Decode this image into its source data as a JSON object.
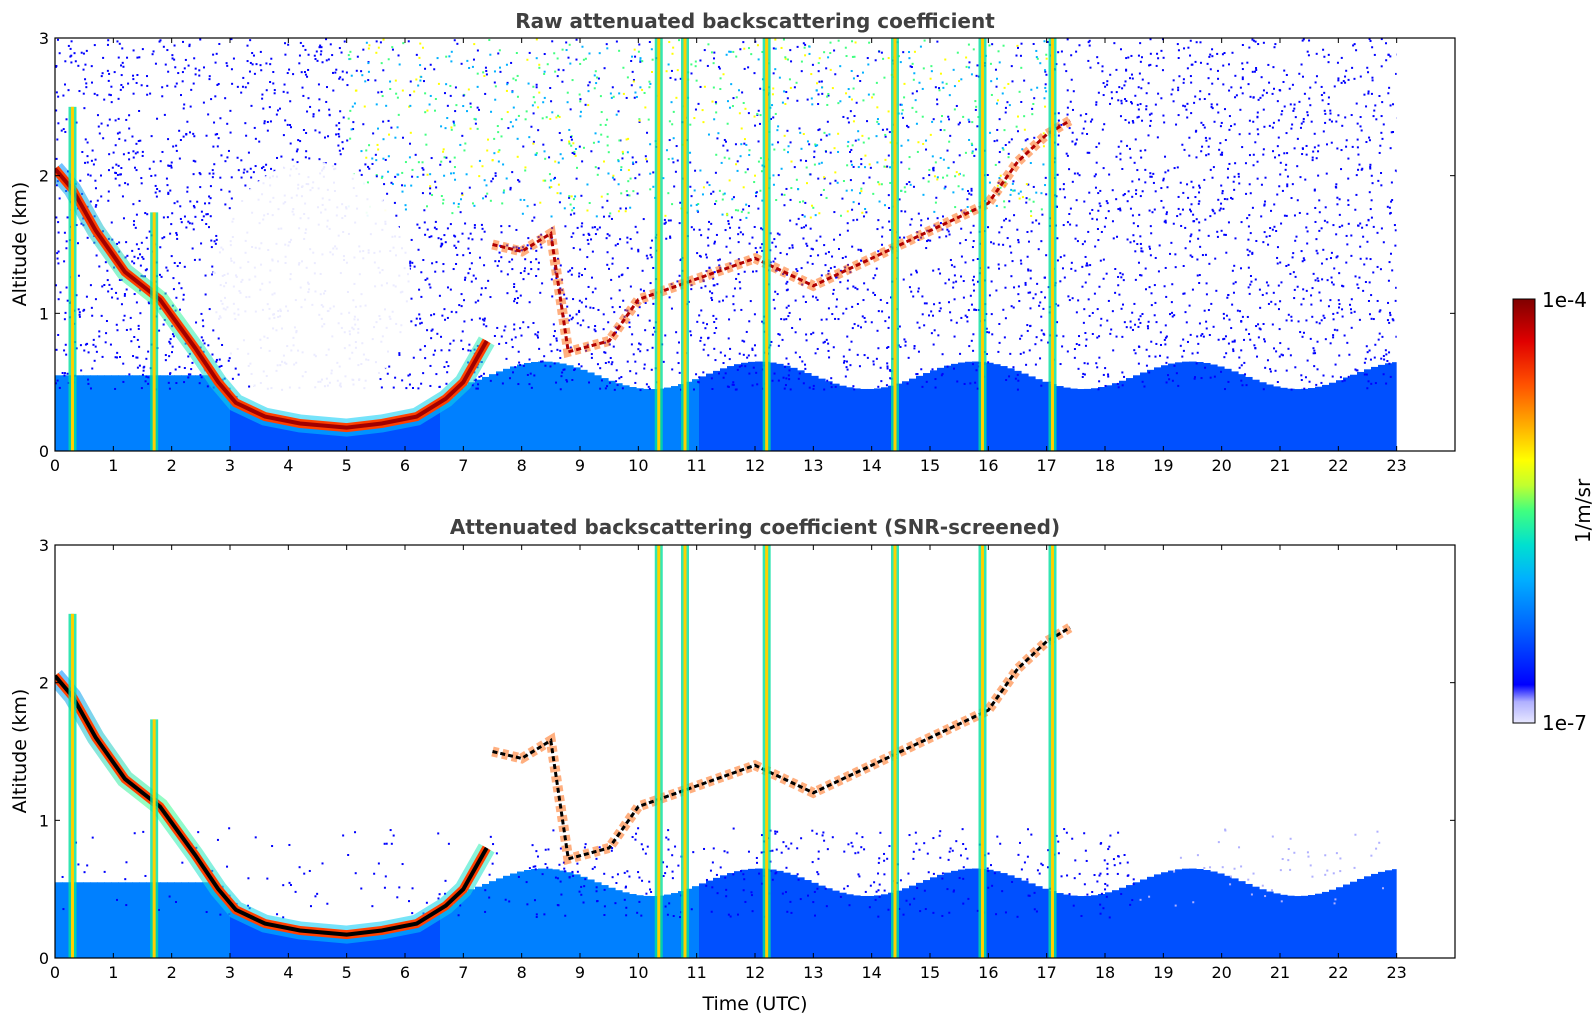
{
  "chart_data": [
    {
      "type": "heatmap",
      "title": "Raw attenuated backscattering coefficient",
      "ylabel": "Altitude (km)",
      "xlabel": "",
      "xlim": [
        0,
        24
      ],
      "ylim": [
        0,
        3
      ],
      "x_ticks": [
        "0",
        "1",
        "2",
        "3",
        "4",
        "5",
        "6",
        "7",
        "8",
        "9",
        "10",
        "11",
        "12",
        "13",
        "14",
        "15",
        "16",
        "17",
        "18",
        "19",
        "20",
        "21",
        "22",
        "23"
      ],
      "y_ticks": [
        "0",
        "1",
        "2",
        "3"
      ],
      "data_extent_x": [
        0,
        23
      ],
      "layers": {
        "boundary_layer_top_km": [
          [
            0,
            2.05
          ],
          [
            0.3,
            1.9
          ],
          [
            0.7,
            1.6
          ],
          [
            1.2,
            1.3
          ],
          [
            1.8,
            1.1
          ],
          [
            2.4,
            0.75
          ],
          [
            2.8,
            0.5
          ],
          [
            3.1,
            0.35
          ],
          [
            3.6,
            0.25
          ],
          [
            4.2,
            0.2
          ],
          [
            5.0,
            0.17
          ],
          [
            5.6,
            0.2
          ],
          [
            6.2,
            0.25
          ],
          [
            6.7,
            0.38
          ],
          [
            7.0,
            0.5
          ],
          [
            7.4,
            0.8
          ]
        ],
        "elevated_aerosol_km": [
          [
            7.5,
            1.5
          ],
          [
            8.0,
            1.45
          ],
          [
            8.5,
            1.58
          ],
          [
            8.8,
            0.72
          ],
          [
            9.5,
            0.8
          ],
          [
            10.0,
            1.1
          ],
          [
            12.0,
            1.4
          ],
          [
            12.5,
            1.3
          ],
          [
            13.0,
            1.2
          ],
          [
            13.5,
            1.3
          ],
          [
            14.0,
            1.4
          ],
          [
            14.5,
            1.5
          ],
          [
            15.0,
            1.6
          ],
          [
            15.5,
            1.7
          ],
          [
            16.0,
            1.8
          ],
          [
            16.5,
            2.1
          ],
          [
            17.0,
            2.3
          ],
          [
            17.4,
            2.4
          ]
        ],
        "precip_columns_hour": [
          0.3,
          1.7,
          10.35,
          10.8,
          12.2,
          14.4,
          15.9,
          17.1
        ]
      }
    },
    {
      "type": "heatmap",
      "title": "Attenuated backscattering coefficient (SNR-screened)",
      "ylabel": "Altitude (km)",
      "xlabel": "Time (UTC)",
      "xlim": [
        0,
        24
      ],
      "ylim": [
        0,
        3
      ],
      "x_ticks": [
        "0",
        "1",
        "2",
        "3",
        "4",
        "5",
        "6",
        "7",
        "8",
        "9",
        "10",
        "11",
        "12",
        "13",
        "14",
        "15",
        "16",
        "17",
        "18",
        "19",
        "20",
        "21",
        "22",
        "23"
      ],
      "y_ticks": [
        "0",
        "1",
        "2",
        "3"
      ],
      "data_extent_x": [
        0,
        23
      ]
    }
  ],
  "colorbar": {
    "label": "1/m/sr",
    "max_label": "1e-4",
    "min_label": "1e-7",
    "scale": "log",
    "colormap": [
      "#e8e8ff",
      "#b0b0ff",
      "#0000ff",
      "#0060ff",
      "#00b0ff",
      "#00e0d0",
      "#40ff80",
      "#c0ff30",
      "#ffff00",
      "#ffb000",
      "#ff5000",
      "#e00000",
      "#800000"
    ]
  }
}
